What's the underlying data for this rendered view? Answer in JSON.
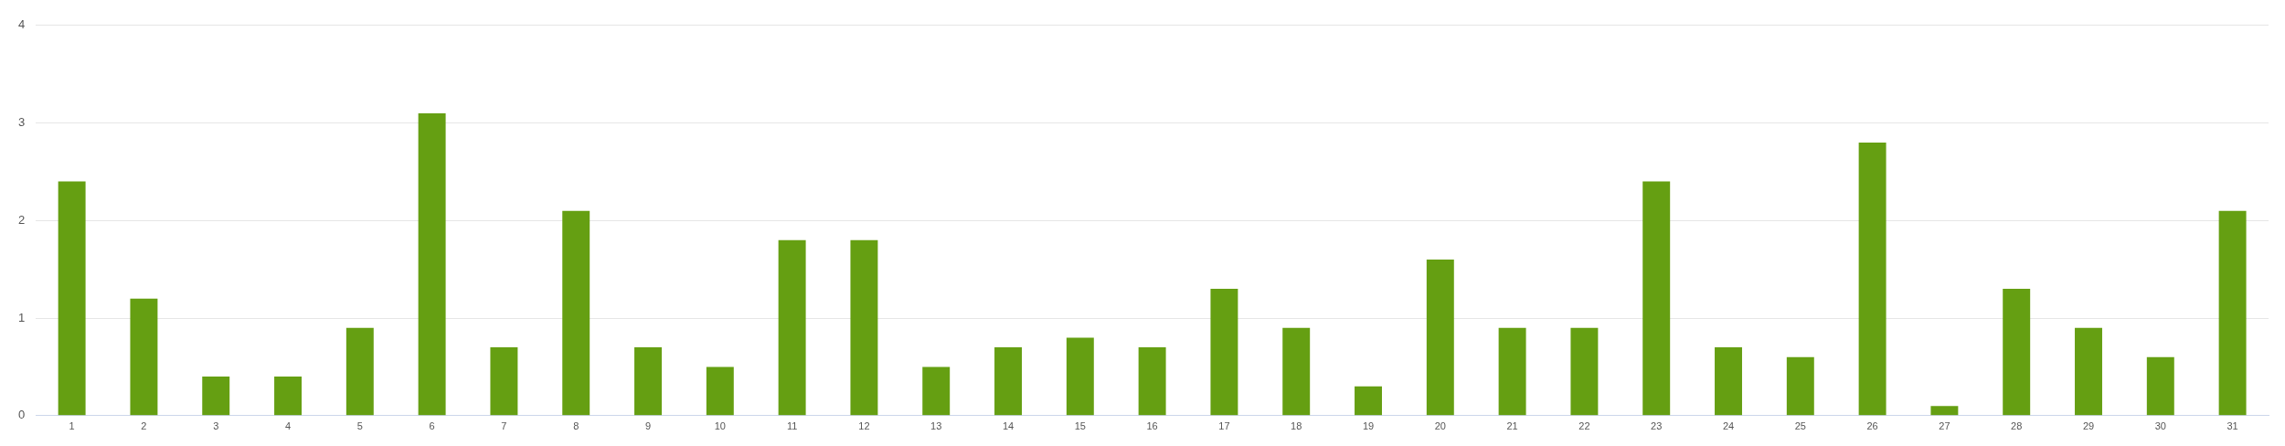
{
  "chart_data": {
    "type": "bar",
    "categories": [
      "1",
      "2",
      "3",
      "4",
      "5",
      "6",
      "7",
      "8",
      "9",
      "10",
      "11",
      "12",
      "13",
      "14",
      "15",
      "16",
      "17",
      "18",
      "19",
      "20",
      "21",
      "22",
      "23",
      "24",
      "25",
      "26",
      "27",
      "28",
      "29",
      "30",
      "31"
    ],
    "values": [
      2.4,
      1.2,
      0.4,
      0.4,
      0.9,
      3.1,
      0.7,
      2.1,
      0.7,
      0.5,
      1.8,
      1.8,
      0.5,
      0.7,
      0.8,
      0.7,
      1.3,
      0.9,
      0.3,
      1.6,
      0.9,
      0.9,
      2.4,
      0.7,
      0.6,
      2.8,
      0.1,
      1.3,
      0.9,
      0.6,
      2.1
    ],
    "color": "#659f12",
    "ylim": [
      0,
      4
    ],
    "yticks": [
      0,
      1,
      2,
      3,
      4
    ],
    "grid": "y"
  }
}
